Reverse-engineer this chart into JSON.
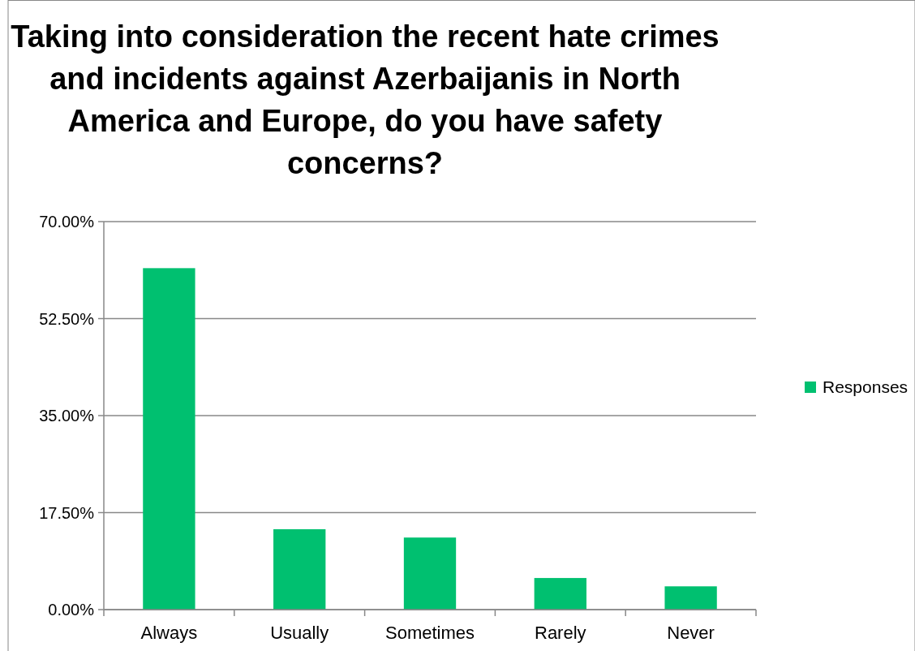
{
  "chart_data": {
    "type": "bar",
    "title": "Taking into consideration the recent hate crimes and incidents against Azerbaijanis in North America and Europe, do you have safety concerns?",
    "categories": [
      "Always",
      "Usually",
      "Sometimes",
      "Rarely",
      "Never"
    ],
    "series": [
      {
        "name": "Responses",
        "color": "#00c070",
        "values": [
          61.6,
          14.5,
          13.0,
          5.7,
          4.2
        ]
      }
    ],
    "ylim": [
      0,
      70
    ],
    "yticks": [
      {
        "value": 0,
        "label": "0.00%"
      },
      {
        "value": 17.5,
        "label": "17.50%"
      },
      {
        "value": 35,
        "label": "35.00%"
      },
      {
        "value": 52.5,
        "label": "52.50%"
      },
      {
        "value": 70,
        "label": "70.00%"
      }
    ],
    "grid": "y",
    "legend": "right"
  }
}
